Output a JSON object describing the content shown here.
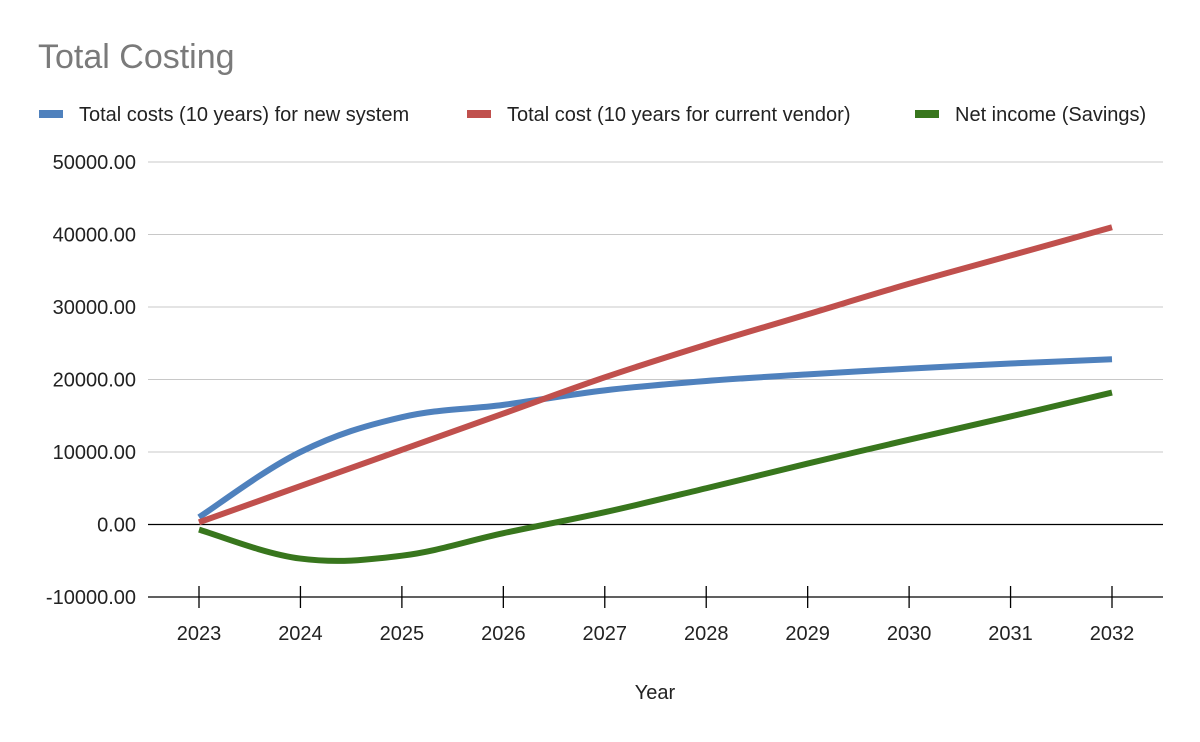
{
  "chart_data": {
    "type": "line",
    "title": "Total Costing",
    "xlabel": "Year",
    "ylabel": "",
    "x": [
      2023,
      2024,
      2025,
      2026,
      2027,
      2028,
      2029,
      2030,
      2031,
      2032
    ],
    "x_tick_labels": [
      "2023",
      "2024",
      "2025",
      "2026",
      "2027",
      "2028",
      "2029",
      "2030",
      "2031",
      "2032"
    ],
    "y_tick_values": [
      50000,
      40000,
      30000,
      20000,
      10000,
      0,
      -10000
    ],
    "y_tick_labels": [
      "50000.00",
      "40000.00",
      "30000.00",
      "20000.00",
      "10000.00",
      "0.00",
      "-10000.00"
    ],
    "ylim": [
      -10000,
      50000
    ],
    "grid": true,
    "legend_position": "top",
    "series": [
      {
        "name": "Total costs (10 years) for new system",
        "color": "#4f81bd",
        "values": [
          1000,
          10000,
          14800,
          16500,
          18500,
          19800,
          20700,
          21500,
          22200,
          22800
        ]
      },
      {
        "name": "Total cost (10 years for current vendor)",
        "color": "#c0504d",
        "values": [
          300,
          5300,
          10300,
          15300,
          20300,
          24800,
          29000,
          33200,
          37100,
          41000
        ]
      },
      {
        "name": "Net income (Savings)",
        "color": "#38761d",
        "values": [
          -700,
          -4700,
          -4300,
          -1200,
          1700,
          5000,
          8400,
          11700,
          14900,
          18200
        ]
      }
    ]
  }
}
